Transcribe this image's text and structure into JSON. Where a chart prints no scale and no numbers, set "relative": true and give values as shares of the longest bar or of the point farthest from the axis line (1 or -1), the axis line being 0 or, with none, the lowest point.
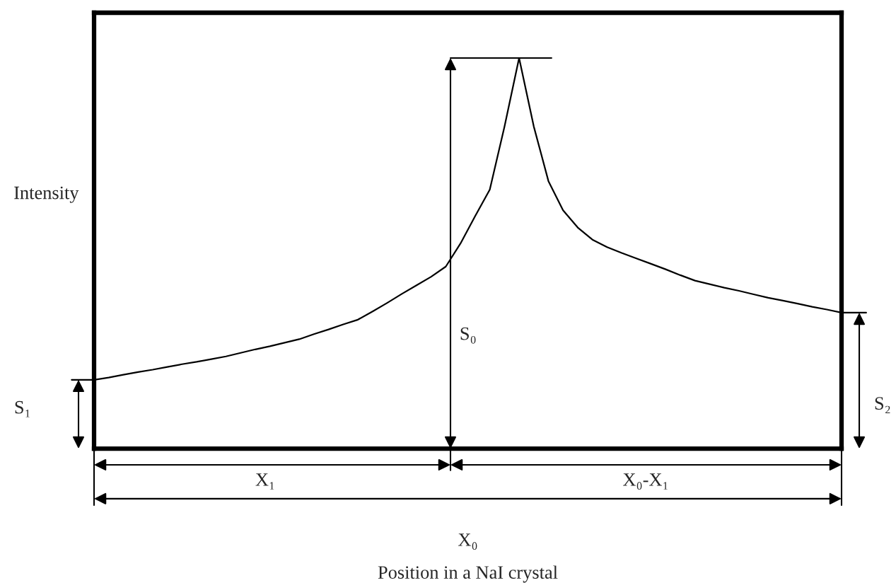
{
  "chart_data": {
    "type": "line",
    "relative": true,
    "ylabel": "Intensity",
    "annotations": [
      "S₀",
      "S₁",
      "S₂",
      "X₁",
      "X₀-X₁",
      "X₀",
      "Position in a NaI crystal"
    ],
    "categories": [
      null,
      null,
      null,
      null,
      null,
      null,
      null,
      null,
      null,
      null,
      null,
      null,
      null,
      null,
      null,
      null,
      null,
      null,
      null,
      null,
      null,
      null,
      null,
      null,
      null,
      null,
      null,
      null,
      null,
      null,
      null,
      null,
      null,
      null,
      null,
      null,
      null,
      null,
      null,
      null,
      null,
      null,
      null,
      null,
      null,
      null,
      null,
      null,
      null,
      null,
      null,
      null
    ],
    "series": [
      {
        "color": "#000000",
        "values": [
          0.176,
          0.182,
          0.189,
          0.196,
          0.202,
          0.209,
          0.216,
          0.222,
          0.229,
          0.236,
          0.245,
          0.254,
          0.262,
          0.271,
          0.28,
          0.293,
          0.305,
          0.318,
          0.33,
          0.351,
          0.373,
          0.396,
          0.418,
          0.44,
          0.466,
          0.525,
          0.595,
          0.663,
          0.824,
          1,
          0.825,
          0.685,
          0.61,
          0.566,
          0.535,
          0.516,
          0.501,
          0.487,
          0.473,
          0.459,
          0.444,
          0.43,
          0.421,
          0.412,
          0.404,
          0.395,
          0.386,
          0.379,
          0.371,
          0.363,
          0.356,
          0.348
        ]
      }
    ]
  }
}
